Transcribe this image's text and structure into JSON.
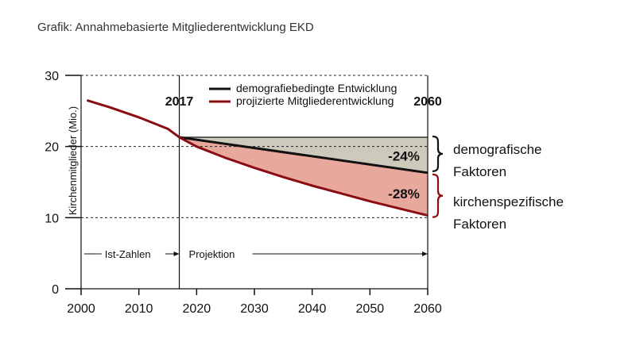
{
  "caption": "Grafik: Annahmebasierte Mitgliederentwicklung EKD",
  "chart_data": {
    "type": "line",
    "title": "",
    "xlabel": "",
    "ylabel": "Kirchenmitglieder (Mio.)",
    "xlim": [
      2000,
      2060
    ],
    "ylim": [
      0,
      30
    ],
    "x_ticks": [
      "2000",
      "2010",
      "2020",
      "2030",
      "2040",
      "2050",
      "2060"
    ],
    "y_ticks": [
      "0",
      "10",
      "20",
      "30"
    ],
    "series": [
      {
        "name": "demografiebedingte Entwicklung",
        "color": "#111111",
        "x": [
          2017,
          2060
        ],
        "y": [
          21.3,
          16.3
        ]
      },
      {
        "name": "projizierte Mitgliederentwicklung",
        "color": "#8b0d14",
        "x": [
          2001,
          2005,
          2010,
          2015,
          2017,
          2020,
          2025,
          2030,
          2035,
          2040,
          2045,
          2050,
          2055,
          2060
        ],
        "y": [
          26.5,
          25.5,
          24.1,
          22.5,
          21.3,
          20.0,
          18.4,
          17.0,
          15.7,
          14.5,
          13.4,
          12.3,
          11.3,
          10.3
        ]
      }
    ],
    "reference_level": 21.3,
    "markers": [
      {
        "label": "2017",
        "x": 2017
      },
      {
        "label": "2060",
        "x": 2060
      }
    ],
    "phases": [
      {
        "label": "Ist-Zahlen",
        "from": 2000,
        "to": 2017
      },
      {
        "label": "Projektion",
        "from": 2017,
        "to": 2060
      }
    ],
    "annotations": {
      "demografic_pct": "-24%",
      "church_pct": "-28%",
      "demografic_label": [
        "demografische",
        "Faktoren"
      ],
      "church_label": [
        "kirchenspezifische",
        "Faktoren"
      ]
    },
    "colors": {
      "demografic_band": "#cdc9bb",
      "church_band": "#e8a89c",
      "projected_line": "#8b0d14",
      "demografic_line": "#111111"
    },
    "grid": "dashed-horizontal",
    "legend_position": "top-center"
  }
}
